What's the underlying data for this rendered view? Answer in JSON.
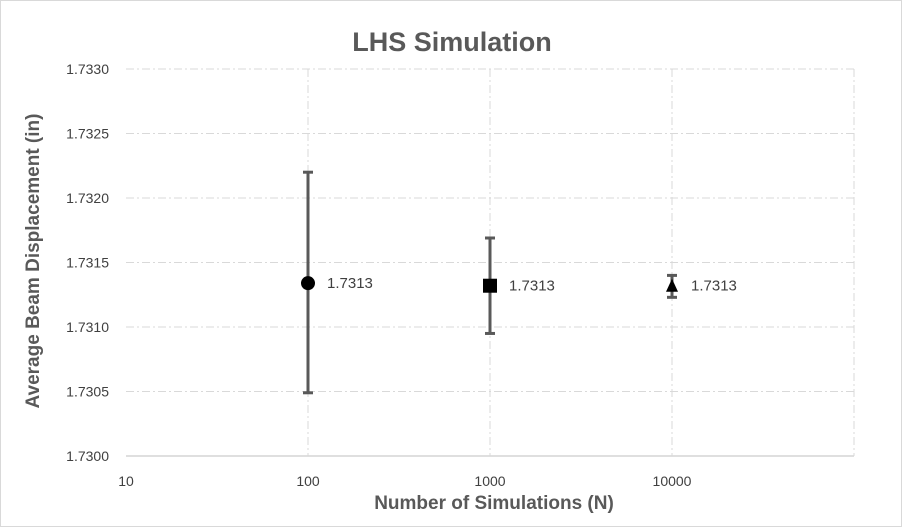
{
  "chart_data": {
    "type": "scatter",
    "title": "LHS Simulation",
    "xlabel": "Number of Simulations (N)",
    "ylabel": "Average Beam Displacement (in)",
    "xscale": "log",
    "xlim": [
      10,
      100000
    ],
    "ylim": [
      1.73,
      1.733
    ],
    "xticks": [
      10,
      100,
      1000,
      10000
    ],
    "xtick_labels": [
      "10",
      "100",
      "1000",
      "10000"
    ],
    "yticks": [
      1.73,
      1.7305,
      1.731,
      1.7315,
      1.732,
      1.7325,
      1.733
    ],
    "ytick_labels": [
      "1.7300",
      "1.7305",
      "1.7310",
      "1.7315",
      "1.7320",
      "1.7325",
      "1.7330"
    ],
    "grid": true,
    "legend": "none",
    "marker_color": "#000000",
    "errorbar_color": "#595959",
    "points": [
      {
        "x": 100,
        "y": 1.73134,
        "y_low": 1.73049,
        "y_high": 1.7322,
        "marker": "circle",
        "label": "1.7313"
      },
      {
        "x": 1000,
        "y": 1.73132,
        "y_low": 1.73095,
        "y_high": 1.73169,
        "marker": "square",
        "label": "1.7313"
      },
      {
        "x": 10000,
        "y": 1.73132,
        "y_low": 1.73123,
        "y_high": 1.7314,
        "marker": "triangle",
        "label": "1.7313"
      }
    ]
  }
}
